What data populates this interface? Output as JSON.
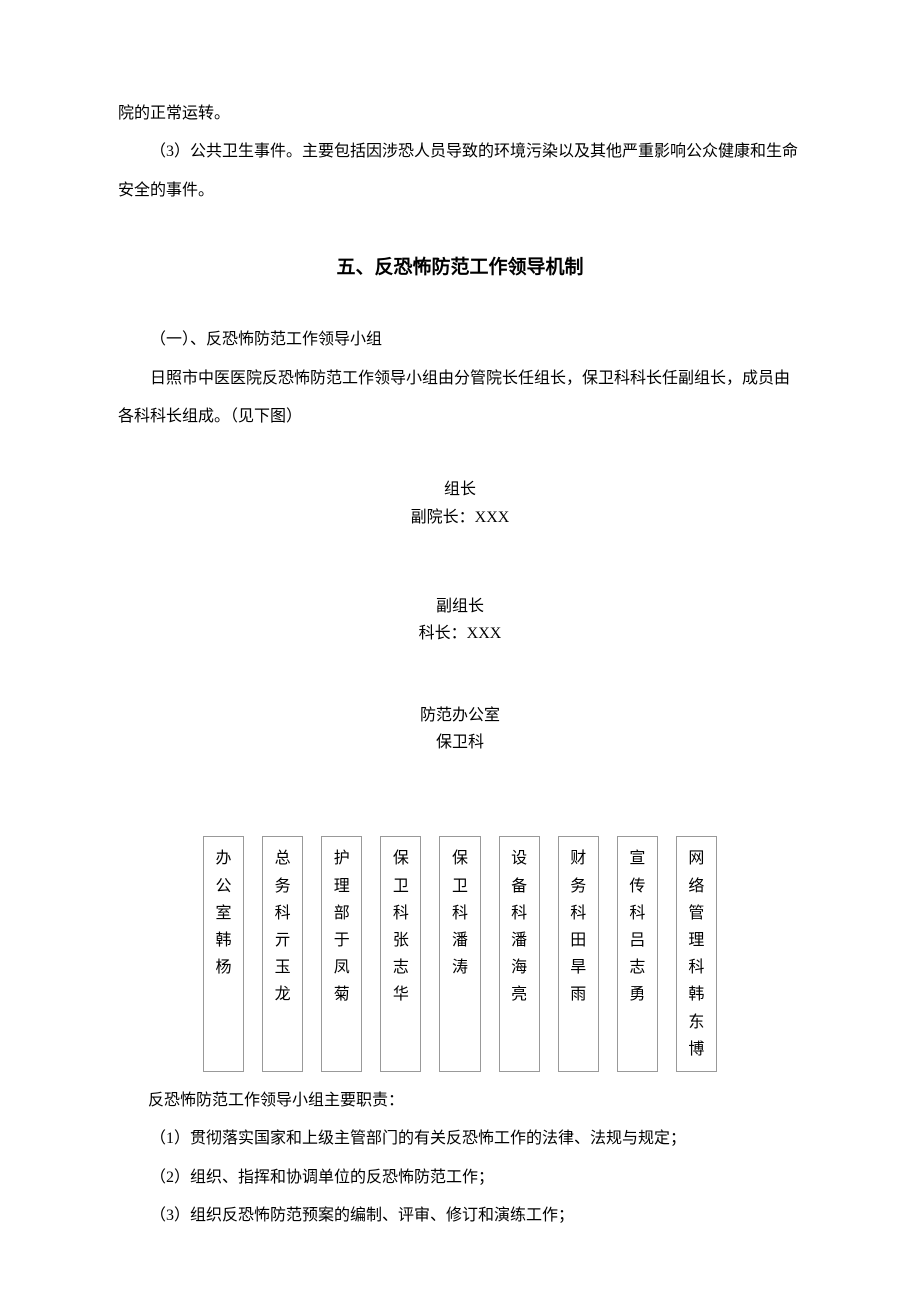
{
  "para1": "院的正常运转。",
  "para2": "（3）公共卫生事件。主要包括因涉恐人员导致的环境污染以及其他严重影响公众健康和生命安全的事件。",
  "section_title": "五、反恐怖防范工作领导机制",
  "para3": "（一）、反恐怖防范工作领导小组",
  "para4": "日照市中医医院反恐怖防范工作领导小组由分管院长任组长，保卫科科长任副组长，成员由各科科长组成。（见下图）",
  "org1_line1": "组长",
  "org1_line2": "副院长：XXX",
  "org2_line1": "副组长",
  "org2_line2": "科长：XXX",
  "org3_line1": "防范办公室",
  "org3_line2": "保卫科",
  "departments": [
    "办公室韩杨",
    "总务科亓玉龙",
    "护理部于凤菊",
    "保卫科张志华",
    "保卫科潘涛",
    "设备科潘海亮",
    "财务科田旱雨",
    "宣传科吕志勇",
    "网络管理科韩东博"
  ],
  "para5": "反恐怖防范工作领导小组主要职责：",
  "para6": "（1）贯彻落实国家和上级主管部门的有关反恐怖工作的法律、法规与规定；",
  "para7": "（2）组织、指挥和协调单位的反恐怖防范工作；",
  "para8": "（3）组织反恐怖防范预案的编制、评审、修订和演练工作；"
}
